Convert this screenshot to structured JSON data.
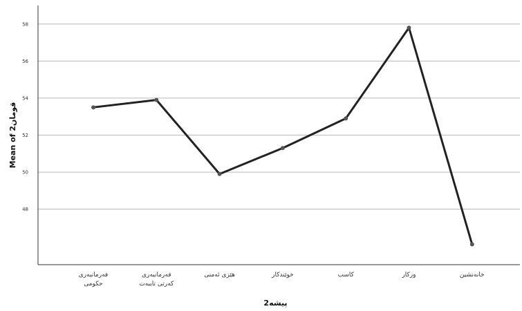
{
  "chart_data": {
    "type": "line",
    "xlabel": "پیشە2",
    "ylabel": "Mean of 2قومان",
    "categories": [
      [
        "فەرمانبەری",
        "حکومی"
      ],
      [
        "فەرمانبەری",
        "کەرتی تایبەت"
      ],
      [
        "هێزی ئەمنی"
      ],
      [
        "خوێندکار"
      ],
      [
        "کاسب"
      ],
      [
        "وزکار"
      ],
      [
        "خانەنشین"
      ]
    ],
    "values": [
      53.5,
      53.9,
      49.9,
      51.3,
      52.9,
      57.8,
      46.1
    ],
    "ylim": [
      45,
      59
    ],
    "y_ticks": [
      48,
      50,
      52,
      54,
      56,
      58
    ],
    "y_tick_labels": [
      "48",
      "50",
      "52",
      "54",
      "56",
      "58"
    ],
    "grid": true,
    "colors": {
      "line": "#222222",
      "grid": "#b8b8b8",
      "axis": "#333333",
      "marker": "#555555"
    }
  }
}
